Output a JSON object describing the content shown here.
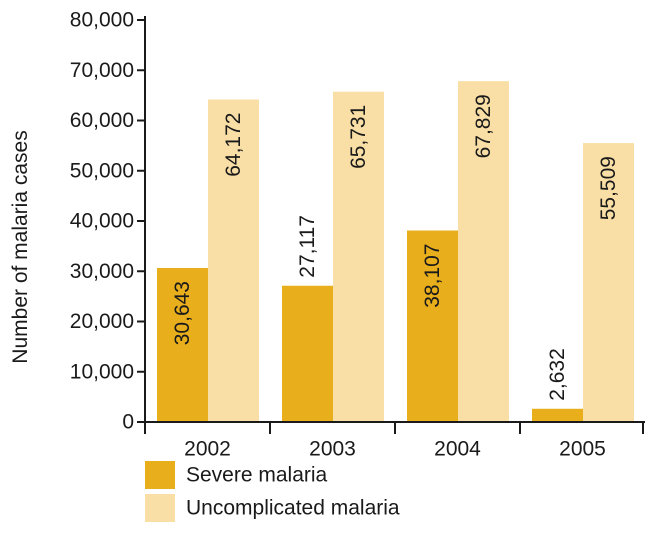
{
  "colors": {
    "severe": "#E8AE1C",
    "uncomplicated": "#F9DFA6",
    "axis": "#1a1a1a",
    "text": "#1a1a1a"
  },
  "chart_data": {
    "type": "bar",
    "title": "",
    "xlabel": "",
    "ylabel": "Number of malaria cases",
    "categories": [
      "2002",
      "2003",
      "2004",
      "2005"
    ],
    "series": [
      {
        "name": "Severe malaria",
        "values": [
          30643,
          27117,
          38107,
          2632
        ],
        "labels": [
          "30,643",
          "27,117",
          "38,107",
          "2,632"
        ],
        "color": "#E8AE1C"
      },
      {
        "name": "Uncomplicated malaria",
        "values": [
          64172,
          65731,
          67829,
          55509
        ],
        "labels": [
          "64,172",
          "65,731",
          "67,829",
          "55,509"
        ],
        "color": "#F9DFA6"
      }
    ],
    "ylim": [
      0,
      80000
    ],
    "yticks": [
      0,
      10000,
      20000,
      30000,
      40000,
      50000,
      60000,
      70000,
      80000
    ],
    "ytick_labels": [
      "0",
      "10,000",
      "20,000",
      "30,000",
      "40,000",
      "50,000",
      "60,000",
      "70,000",
      "80,000"
    ],
    "grid": false,
    "legend": {
      "position": "bottom-left",
      "entries": [
        "Severe malaria",
        "Uncomplicated malaria"
      ]
    }
  }
}
